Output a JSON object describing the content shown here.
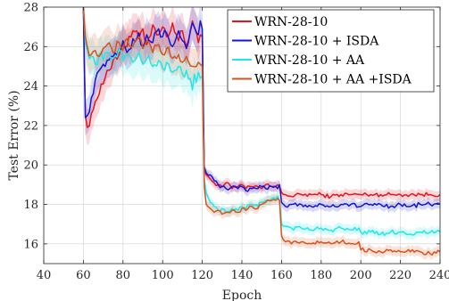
{
  "chart_data": {
    "type": "line",
    "xlabel": "Epoch",
    "ylabel": "Test Error (%)",
    "xlim": [
      40,
      240
    ],
    "ylim": [
      15,
      28
    ],
    "xticks": [
      40,
      60,
      80,
      100,
      120,
      140,
      160,
      180,
      200,
      220,
      240
    ],
    "yticks": [
      16,
      18,
      20,
      22,
      24,
      26,
      28
    ],
    "grid": true,
    "legend_position": "top-right",
    "series": [
      {
        "name": "WRN-28-10",
        "color": "#e8141c",
        "x": [
          60,
          61,
          62,
          64,
          66,
          68,
          70,
          72,
          75,
          78,
          80,
          82,
          85,
          88,
          90,
          92,
          95,
          98,
          100,
          102,
          105,
          108,
          110,
          112,
          115,
          118,
          119,
          120,
          121,
          122,
          124,
          126,
          128,
          130,
          132,
          135,
          138,
          140,
          142,
          145,
          148,
          150,
          152,
          155,
          158,
          159,
          160,
          161,
          162,
          165,
          170,
          175,
          180,
          185,
          190,
          195,
          200,
          205,
          210,
          215,
          220,
          225,
          230,
          235,
          240
        ],
        "values": [
          28,
          22.5,
          21.9,
          22.6,
          23.2,
          23.6,
          24.1,
          24.8,
          25.3,
          25.6,
          26.2,
          26.0,
          26.8,
          26.4,
          26.9,
          26.1,
          27.1,
          26.6,
          27.0,
          26.5,
          27.2,
          26.3,
          26.8,
          26.0,
          27.3,
          26.2,
          26.6,
          26.5,
          19.8,
          19.5,
          19.3,
          19.1,
          19.0,
          18.9,
          19.1,
          18.8,
          18.9,
          19.0,
          18.8,
          18.9,
          18.9,
          18.8,
          19.0,
          18.9,
          19.0,
          18.9,
          18.6,
          18.5,
          18.5,
          18.4,
          18.5,
          18.5,
          18.5,
          18.4,
          18.5,
          18.5,
          18.5,
          18.5,
          18.5,
          18.5,
          18.5,
          18.5,
          18.5,
          18.5,
          18.5
        ]
      },
      {
        "name": "WRN-28-10 + ISDA",
        "color": "#1515d8",
        "x": [
          60,
          61,
          62,
          64,
          66,
          68,
          70,
          72,
          75,
          78,
          80,
          82,
          85,
          88,
          90,
          92,
          95,
          98,
          100,
          102,
          105,
          108,
          110,
          112,
          115,
          118,
          119,
          120,
          121,
          122,
          124,
          126,
          128,
          130,
          132,
          135,
          138,
          140,
          142,
          145,
          148,
          150,
          152,
          155,
          158,
          159,
          160,
          161,
          162,
          165,
          170,
          175,
          180,
          185,
          190,
          195,
          200,
          205,
          210,
          215,
          220,
          225,
          230,
          235,
          240
        ],
        "values": [
          28,
          22.4,
          22.5,
          23.4,
          24.3,
          24.8,
          25.1,
          25.3,
          25.5,
          25.9,
          26.3,
          25.7,
          26.4,
          26.7,
          26.0,
          26.6,
          26.2,
          26.9,
          26.5,
          26.7,
          26.0,
          26.8,
          26.3,
          25.9,
          27.2,
          26.6,
          27.3,
          26.9,
          19.9,
          19.6,
          19.5,
          19.2,
          19.0,
          18.9,
          18.8,
          18.9,
          18.8,
          18.9,
          18.7,
          18.8,
          18.8,
          18.9,
          18.8,
          18.9,
          18.8,
          19.0,
          18.1,
          18.0,
          17.9,
          18.0,
          18.0,
          17.9,
          18.0,
          17.9,
          18.0,
          18.0,
          17.9,
          18.0,
          18.0,
          17.9,
          18.0,
          17.9,
          18.0,
          18.0,
          18.0
        ]
      },
      {
        "name": "WRN-28-10 + AA",
        "color": "#1ee8e8",
        "x": [
          60,
          61,
          62,
          64,
          66,
          68,
          70,
          72,
          75,
          78,
          80,
          82,
          85,
          88,
          90,
          92,
          95,
          98,
          100,
          102,
          105,
          108,
          110,
          112,
          115,
          116,
          117,
          118,
          119,
          120,
          121,
          122,
          124,
          126,
          128,
          130,
          132,
          135,
          138,
          140,
          142,
          145,
          148,
          150,
          152,
          155,
          158,
          159,
          160,
          161,
          162,
          165,
          170,
          175,
          180,
          185,
          190,
          195,
          199,
          200,
          205,
          210,
          215,
          220,
          225,
          230,
          235,
          240
        ],
        "values": [
          28,
          26.2,
          25.8,
          25.5,
          25.1,
          25.6,
          25.3,
          25.7,
          25.4,
          25.9,
          25.3,
          25.6,
          25.2,
          25.7,
          25.1,
          25.4,
          25.0,
          25.3,
          24.9,
          25.2,
          24.7,
          25.0,
          24.6,
          24.8,
          23.8,
          24.6,
          24.2,
          24.7,
          24.4,
          24.5,
          19.3,
          18.6,
          18.1,
          17.9,
          17.7,
          17.8,
          17.6,
          17.8,
          17.7,
          17.9,
          17.8,
          18.0,
          17.9,
          18.1,
          18.2,
          18.3,
          18.4,
          18.2,
          17.0,
          16.9,
          16.9,
          16.8,
          16.8,
          16.7,
          16.8,
          16.7,
          16.8,
          16.7,
          16.8,
          16.6,
          16.6,
          16.5,
          16.6,
          16.6,
          16.5,
          16.6,
          16.6,
          16.6
        ]
      },
      {
        "name": "WRN-28-10 + AA +ISDA",
        "color": "#d95319",
        "x": [
          60,
          61,
          62,
          64,
          66,
          68,
          70,
          72,
          75,
          78,
          80,
          82,
          85,
          88,
          90,
          92,
          95,
          98,
          100,
          102,
          105,
          108,
          110,
          112,
          115,
          118,
          119,
          120,
          121,
          122,
          124,
          126,
          128,
          130,
          132,
          135,
          138,
          140,
          142,
          145,
          148,
          150,
          152,
          155,
          158,
          159,
          160,
          161,
          162,
          165,
          170,
          175,
          180,
          185,
          190,
          195,
          199,
          200,
          205,
          210,
          215,
          220,
          225,
          230,
          235,
          240
        ],
        "values": [
          28,
          26.5,
          26.0,
          25.6,
          25.8,
          25.5,
          25.9,
          26.1,
          25.7,
          26.2,
          25.8,
          26.4,
          26.0,
          26.5,
          25.9,
          26.3,
          25.7,
          26.1,
          25.6,
          25.9,
          25.4,
          25.6,
          25.2,
          25.5,
          25.0,
          25.2,
          25.1,
          25.0,
          18.9,
          18.0,
          17.8,
          17.6,
          17.7,
          17.5,
          17.6,
          17.7,
          17.6,
          17.8,
          17.7,
          17.9,
          17.8,
          18.0,
          18.1,
          18.2,
          18.3,
          18.2,
          16.4,
          16.2,
          16.1,
          16.0,
          16.1,
          16.0,
          16.1,
          16.0,
          16.1,
          16.0,
          16.1,
          15.7,
          15.7,
          15.6,
          15.7,
          15.6,
          15.6,
          15.6,
          15.5,
          15.6
        ]
      }
    ]
  }
}
